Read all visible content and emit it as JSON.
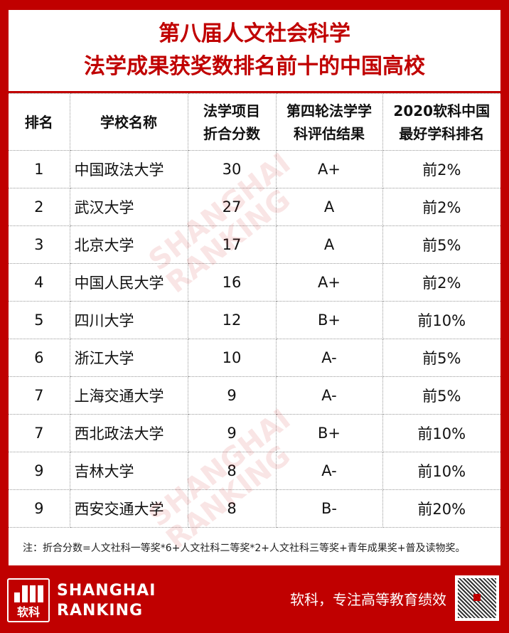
{
  "title": {
    "line1": "第八届人文社会科学",
    "line2": "法学成果获奖数排名前十的中国高校"
  },
  "table": {
    "headers": [
      "排名",
      "学校名称",
      "法学项目\n折合分数",
      "第四轮法学学\n科评估结果",
      "2020软科中国\n最好学科排名"
    ],
    "rows": [
      [
        "1",
        "中国政法大学",
        "30",
        "A+",
        "前2%"
      ],
      [
        "2",
        "武汉大学",
        "27",
        "A",
        "前2%"
      ],
      [
        "3",
        "北京大学",
        "17",
        "A",
        "前5%"
      ],
      [
        "4",
        "中国人民大学",
        "16",
        "A+",
        "前2%"
      ],
      [
        "5",
        "四川大学",
        "12",
        "B+",
        "前10%"
      ],
      [
        "6",
        "浙江大学",
        "10",
        "A-",
        "前5%"
      ],
      [
        "7",
        "上海交通大学",
        "9",
        "A-",
        "前5%"
      ],
      [
        "7",
        "西北政法大学",
        "9",
        "B+",
        "前10%"
      ],
      [
        "9",
        "吉林大学",
        "8",
        "A-",
        "前10%"
      ],
      [
        "9",
        "西安交通大学",
        "8",
        "B-",
        "前20%"
      ]
    ]
  },
  "note": "注：折合分数=人文社科一等奖*6+人文社科二等奖*2+人文社科三等奖+青年成果奖+普及读物奖。",
  "watermark": "SHANGHAI RANKING",
  "footer": {
    "logo_text": "软科",
    "brand_line1": "SHANGHAI",
    "brand_line2": "RANKING",
    "slogan": "软科，专注高等教育绩效"
  },
  "colors": {
    "brand_red": "#c00000"
  }
}
